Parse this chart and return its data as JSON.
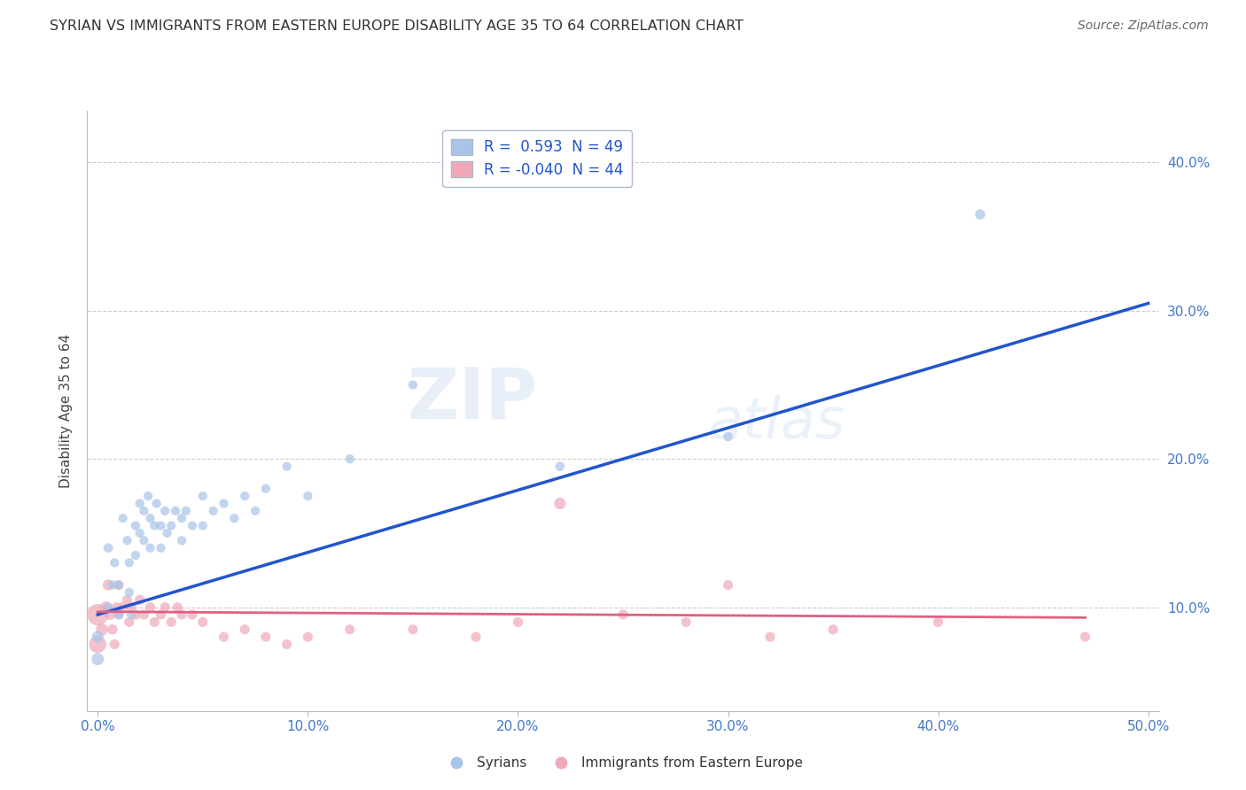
{
  "title": "SYRIAN VS IMMIGRANTS FROM EASTERN EUROPE DISABILITY AGE 35 TO 64 CORRELATION CHART",
  "source": "Source: ZipAtlas.com",
  "ylabel": "Disability Age 35 to 64",
  "xlim": [
    -0.005,
    0.505
  ],
  "ylim": [
    0.03,
    0.435
  ],
  "xticks": [
    0.0,
    0.1,
    0.2,
    0.3,
    0.4,
    0.5
  ],
  "yticks": [
    0.1,
    0.2,
    0.3,
    0.4
  ],
  "xtick_labels": [
    "0.0%",
    "10.0%",
    "20.0%",
    "30.0%",
    "40.0%",
    "50.0%"
  ],
  "ytick_labels": [
    "10.0%",
    "20.0%",
    "30.0%",
    "40.0%"
  ],
  "legend_labels": [
    "Syrians",
    "Immigrants from Eastern Europe"
  ],
  "r1": 0.593,
  "n1": 49,
  "r2": -0.04,
  "n2": 44,
  "blue_color": "#a8c4e8",
  "pink_color": "#f0a8b8",
  "blue_line_color": "#2255cc",
  "pink_line_color": "#e06080",
  "watermark_zip": "ZIP",
  "watermark_atlas": "atlas",
  "background_color": "#ffffff",
  "title_color": "#333333",
  "source_color": "#666666",
  "axis_label_color": "#444444",
  "tick_color": "#4477cc",
  "grid_color": "#cccccc",
  "syrians_x": [
    0.0,
    0.0,
    0.005,
    0.005,
    0.007,
    0.008,
    0.01,
    0.01,
    0.012,
    0.014,
    0.015,
    0.015,
    0.016,
    0.018,
    0.018,
    0.02,
    0.02,
    0.022,
    0.022,
    0.024,
    0.025,
    0.025,
    0.027,
    0.028,
    0.03,
    0.03,
    0.032,
    0.033,
    0.035,
    0.037,
    0.04,
    0.04,
    0.042,
    0.045,
    0.05,
    0.05,
    0.055,
    0.06,
    0.065,
    0.07,
    0.075,
    0.08,
    0.09,
    0.1,
    0.12,
    0.15,
    0.22,
    0.3,
    0.42
  ],
  "syrians_y": [
    0.065,
    0.08,
    0.14,
    0.1,
    0.115,
    0.13,
    0.115,
    0.095,
    0.16,
    0.145,
    0.13,
    0.11,
    0.095,
    0.155,
    0.135,
    0.17,
    0.15,
    0.165,
    0.145,
    0.175,
    0.16,
    0.14,
    0.155,
    0.17,
    0.155,
    0.14,
    0.165,
    0.15,
    0.155,
    0.165,
    0.16,
    0.145,
    0.165,
    0.155,
    0.175,
    0.155,
    0.165,
    0.17,
    0.16,
    0.175,
    0.165,
    0.18,
    0.195,
    0.175,
    0.2,
    0.25,
    0.195,
    0.215,
    0.365
  ],
  "syrians_size": [
    100,
    90,
    60,
    60,
    55,
    55,
    55,
    55,
    55,
    55,
    55,
    55,
    55,
    55,
    55,
    55,
    55,
    55,
    55,
    55,
    55,
    55,
    55,
    55,
    55,
    55,
    55,
    55,
    55,
    55,
    55,
    55,
    55,
    55,
    55,
    55,
    55,
    55,
    55,
    55,
    55,
    55,
    55,
    55,
    55,
    55,
    60,
    60,
    70
  ],
  "eastern_x": [
    0.0,
    0.0,
    0.002,
    0.004,
    0.005,
    0.006,
    0.007,
    0.008,
    0.009,
    0.01,
    0.01,
    0.012,
    0.014,
    0.015,
    0.016,
    0.018,
    0.02,
    0.022,
    0.025,
    0.027,
    0.03,
    0.032,
    0.035,
    0.038,
    0.04,
    0.045,
    0.05,
    0.06,
    0.07,
    0.08,
    0.09,
    0.1,
    0.12,
    0.15,
    0.18,
    0.2,
    0.22,
    0.25,
    0.28,
    0.3,
    0.32,
    0.35,
    0.4,
    0.47
  ],
  "eastern_y": [
    0.095,
    0.075,
    0.085,
    0.1,
    0.115,
    0.095,
    0.085,
    0.075,
    0.1,
    0.095,
    0.115,
    0.1,
    0.105,
    0.09,
    0.1,
    0.095,
    0.105,
    0.095,
    0.1,
    0.09,
    0.095,
    0.1,
    0.09,
    0.1,
    0.095,
    0.095,
    0.09,
    0.08,
    0.085,
    0.08,
    0.075,
    0.08,
    0.085,
    0.085,
    0.08,
    0.09,
    0.17,
    0.095,
    0.09,
    0.115,
    0.08,
    0.085,
    0.09,
    0.08
  ],
  "eastern_size": [
    300,
    200,
    100,
    90,
    80,
    75,
    70,
    65,
    65,
    65,
    65,
    65,
    65,
    65,
    65,
    65,
    65,
    65,
    65,
    65,
    65,
    65,
    65,
    65,
    65,
    65,
    65,
    65,
    65,
    65,
    65,
    65,
    65,
    65,
    65,
    65,
    90,
    65,
    65,
    65,
    65,
    65,
    65,
    65
  ],
  "blue_trend_x": [
    0.0,
    0.5
  ],
  "blue_trend_y": [
    0.095,
    0.305
  ],
  "pink_trend_x": [
    0.0,
    0.47
  ],
  "pink_trend_y": [
    0.097,
    0.093
  ]
}
